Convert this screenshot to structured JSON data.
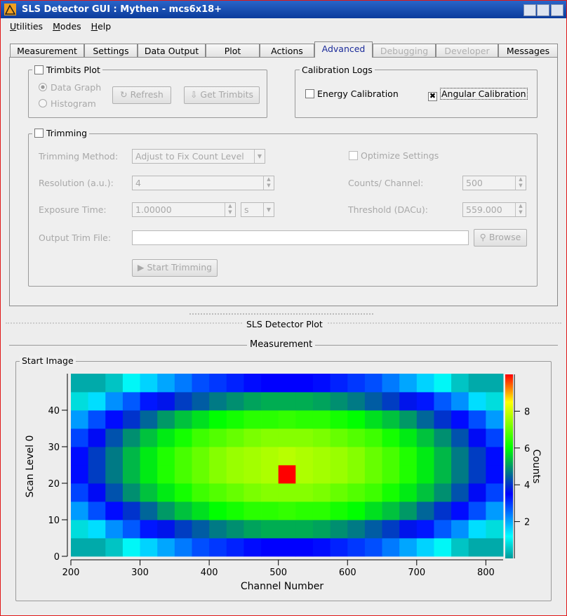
{
  "window": {
    "title": "SLS Detector GUI : Mythen - mcs6x18+"
  },
  "menu": [
    "Utilities",
    "Modes",
    "Help"
  ],
  "tabs": [
    {
      "label": "Measurement",
      "state": "normal"
    },
    {
      "label": "Settings",
      "state": "normal"
    },
    {
      "label": "Data Output",
      "state": "normal"
    },
    {
      "label": "Plot",
      "state": "normal"
    },
    {
      "label": "Actions",
      "state": "normal"
    },
    {
      "label": "Advanced",
      "state": "active"
    },
    {
      "label": "Debugging",
      "state": "disabled"
    },
    {
      "label": "Developer",
      "state": "disabled"
    },
    {
      "label": "Messages",
      "state": "normal"
    }
  ],
  "trimbits": {
    "title": "Trimbits Plot",
    "options": [
      "Data Graph",
      "Histogram"
    ],
    "buttons": [
      "Refresh",
      "Get Trimbits"
    ]
  },
  "calibration": {
    "title": "Calibration Logs",
    "energy": "Energy Calibration",
    "angular": "Angular Calibration"
  },
  "trimming": {
    "title": "Trimming",
    "method_label": "Trimming Method:",
    "method": "Adjust to Fix Count Level",
    "resolution_label": "Resolution (a.u.):",
    "resolution": "4",
    "exposure_label": "Exposure Time:",
    "exposure": "1.00000",
    "exposure_unit": "s",
    "output_label": "Output Trim File:",
    "browse": "Browse",
    "start": "Start Trimming",
    "optimize": "Optimize Settings",
    "counts_label": "Counts/ Channel:",
    "counts": "500",
    "threshold_label": "Threshold (DACu):",
    "threshold": "559.000"
  },
  "plot_header": "SLS Detector Plot",
  "section": "Measurement",
  "group": "Start Image",
  "chart_data": {
    "type": "heatmap",
    "xlabel": "Channel Number",
    "ylabel": "Scan Level 0",
    "colorbar_label": "Counts",
    "xbins": [
      200,
      225,
      250,
      275,
      300,
      325,
      350,
      375,
      400,
      425,
      450,
      475,
      500,
      525,
      550,
      575,
      600,
      625,
      650,
      675,
      700,
      725,
      750,
      775,
      800,
      825
    ],
    "ybins": [
      0,
      5,
      10,
      15,
      20,
      25,
      30,
      35,
      40,
      45,
      50
    ],
    "values": [
      [
        0.2,
        0.2,
        0.5,
        1.1,
        1.6,
        2.0,
        2.4,
        2.8,
        3.0,
        3.2,
        3.4,
        3.5,
        3.5,
        3.5,
        3.4,
        3.2,
        3.0,
        2.8,
        2.4,
        2.0,
        1.6,
        1.1,
        0.5,
        0.2,
        0.2
      ],
      [
        0.8,
        1.5,
        2.2,
        2.7,
        3.3,
        3.7,
        4.1,
        4.4,
        4.7,
        4.9,
        5.1,
        5.2,
        5.2,
        5.2,
        5.1,
        4.9,
        4.7,
        4.4,
        4.1,
        3.7,
        3.3,
        2.7,
        2.2,
        1.5,
        0.8
      ],
      [
        2.1,
        2.8,
        3.4,
        4.0,
        4.5,
        5.0,
        5.4,
        5.7,
        6.0,
        6.2,
        6.4,
        6.4,
        6.5,
        6.4,
        6.4,
        6.2,
        6.0,
        5.7,
        5.4,
        5.0,
        4.5,
        4.0,
        3.4,
        2.8,
        2.1
      ],
      [
        2.9,
        3.6,
        4.3,
        4.9,
        5.4,
        5.8,
        6.2,
        6.6,
        6.8,
        7.0,
        7.2,
        7.3,
        7.3,
        7.3,
        7.2,
        7.0,
        6.8,
        6.6,
        6.2,
        5.8,
        5.4,
        4.9,
        4.3,
        3.6,
        2.9
      ],
      [
        3.4,
        4.1,
        4.7,
        5.3,
        5.8,
        6.3,
        6.7,
        7.0,
        7.3,
        7.5,
        7.6,
        7.7,
        10.0,
        7.7,
        7.6,
        7.5,
        7.3,
        7.0,
        6.7,
        6.3,
        5.8,
        5.3,
        4.7,
        4.1,
        3.4
      ],
      [
        3.4,
        4.1,
        4.7,
        5.3,
        5.8,
        6.3,
        6.7,
        7.0,
        7.3,
        7.5,
        7.6,
        7.7,
        7.8,
        7.7,
        7.6,
        7.5,
        7.3,
        7.0,
        6.7,
        6.3,
        5.8,
        5.3,
        4.7,
        4.1,
        3.4
      ],
      [
        2.9,
        3.6,
        4.3,
        4.9,
        5.4,
        5.8,
        6.2,
        6.6,
        6.8,
        7.0,
        7.2,
        7.3,
        7.3,
        7.3,
        7.2,
        7.0,
        6.8,
        6.6,
        6.2,
        5.8,
        5.4,
        4.9,
        4.3,
        3.6,
        2.9
      ],
      [
        2.1,
        2.8,
        3.4,
        4.0,
        4.5,
        5.0,
        5.4,
        5.7,
        6.0,
        6.2,
        6.4,
        6.4,
        6.5,
        6.4,
        6.4,
        6.2,
        6.0,
        5.7,
        5.4,
        5.0,
        4.5,
        4.0,
        3.4,
        2.8,
        2.1
      ],
      [
        0.8,
        1.5,
        2.2,
        2.7,
        3.3,
        3.7,
        4.1,
        4.4,
        4.7,
        4.9,
        5.1,
        5.2,
        5.2,
        5.2,
        5.1,
        4.9,
        4.7,
        4.4,
        4.1,
        3.7,
        3.3,
        2.7,
        2.2,
        1.5,
        0.8
      ],
      [
        0.2,
        0.2,
        0.5,
        1.1,
        1.6,
        2.0,
        2.4,
        2.8,
        3.0,
        3.2,
        3.4,
        3.5,
        3.5,
        3.5,
        3.4,
        3.2,
        3.0,
        2.8,
        2.4,
        2.0,
        1.6,
        1.1,
        0.5,
        0.2,
        0.2
      ]
    ],
    "xlim": [
      200,
      825
    ],
    "ylim": [
      0,
      50
    ],
    "zlim": [
      0,
      10
    ],
    "xticks": [
      200,
      300,
      400,
      500,
      600,
      700,
      800
    ],
    "yticks": [
      0,
      10,
      20,
      30,
      40
    ],
    "zticks": [
      2,
      4,
      6,
      8
    ]
  }
}
